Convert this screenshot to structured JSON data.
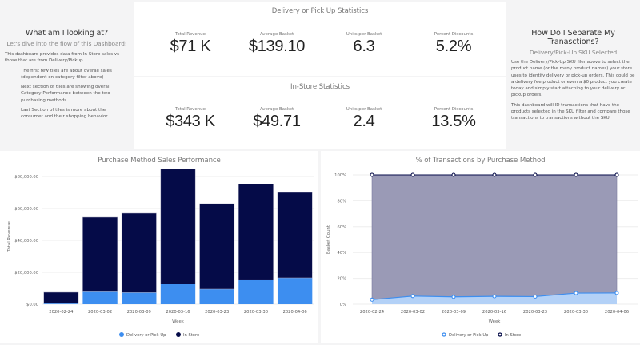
{
  "left_panel": {
    "title": "What am I looking at?",
    "subtitle": "Let's dive into the flow of this Dashboard!",
    "intro": "This dashboard provides data from In-Store sales vs those that are from Delivery/Pickup.",
    "bullets": [
      "The first few tiles are about overall sales (dependent on category filter above)",
      "Next section of tiles are showing overall Category Performance between the two purchasing methods.",
      "Last Section of tiles is more about the consumer and their shopping behavior."
    ]
  },
  "right_panel": {
    "title": "How Do I Separate My Tranasctions?",
    "subtitle": "Delivery/Pick-Up SKU Selected",
    "paragraphs": [
      "Use the Delivery/Pick-Up SKU filer above to select the product name (or the many product names) your store uses to identify delivery or pick-up orders. This could be a delivery fee product or even a $0 product you create today and simply start attaching to your delivery or pickup orders.",
      "This dashboard will ID transactions that have the products selected in the SKU filter and compare those transactions to transactions without the SKU."
    ]
  },
  "delivery_stats": {
    "title": "Delivery or Pick Up Statistics",
    "metrics": [
      {
        "label": "Total Revenue",
        "value": "$71 K"
      },
      {
        "label": "Average Basket",
        "value": "$139.10"
      },
      {
        "label": "Units per Basket",
        "value": "6.3"
      },
      {
        "label": "Percent Discounts",
        "value": "5.2%"
      }
    ]
  },
  "instore_stats": {
    "title": "In-Store Statistics",
    "metrics": [
      {
        "label": "Total Revenue",
        "value": "$343 K"
      },
      {
        "label": "Average Basket",
        "value": "$49.71"
      },
      {
        "label": "Units per Basket",
        "value": "2.4"
      },
      {
        "label": "Percent Discounts",
        "value": "13.5%"
      }
    ]
  },
  "colors": {
    "delivery": "#3d8ef0",
    "in_store": "#050b48",
    "area_delivery": "#b3d1f7",
    "area_in_store": "#9a9ab6"
  },
  "chart_data": [
    {
      "type": "bar",
      "stacked": true,
      "title": "Purchase Method Sales Performance",
      "xlabel": "Week",
      "ylabel": "Total Revenue",
      "ylim": [
        0,
        85000
      ],
      "yticks": [
        0,
        20000,
        40000,
        60000,
        80000
      ],
      "ytick_labels": [
        "$0.00",
        "$20,000.00",
        "$40,000.00",
        "$60,000.00",
        "$80,000.00"
      ],
      "grid": true,
      "legend": "bottom",
      "categories": [
        "2020-02-24",
        "2020-03-02",
        "2020-03-09",
        "2020-03-16",
        "2020-03-23",
        "2020-03-30",
        "2020-04-06"
      ],
      "series": [
        {
          "name": "Delivery or Pick-Up",
          "values": [
            500,
            7800,
            7300,
            12800,
            9500,
            15400,
            16500
          ]
        },
        {
          "name": "In Store",
          "values": [
            7000,
            46700,
            49700,
            72000,
            53500,
            59900,
            53500
          ]
        }
      ]
    },
    {
      "type": "area",
      "stacked": true,
      "title": "% of Transactions by Purchase Method",
      "xlabel": "Week",
      "ylabel": "Basket Count",
      "ylim": [
        0,
        100
      ],
      "yticks": [
        0,
        20,
        40,
        60,
        80,
        100
      ],
      "ytick_labels": [
        "0%",
        "20%",
        "40%",
        "60%",
        "80%",
        "100%"
      ],
      "grid": true,
      "legend": "bottom",
      "categories": [
        "2020-02-24",
        "2020-03-02",
        "2020-03-09",
        "2020-03-16",
        "2020-03-23",
        "2020-03-30",
        "2020-04-06"
      ],
      "series": [
        {
          "name": "Delivery or Pick-Up",
          "values": [
            3.5,
            6.3,
            5.7,
            6.1,
            5.9,
            8.6,
            8.7
          ]
        },
        {
          "name": "In Store",
          "values": [
            96.5,
            93.7,
            94.3,
            93.9,
            94.1,
            91.4,
            91.3
          ]
        }
      ]
    }
  ]
}
